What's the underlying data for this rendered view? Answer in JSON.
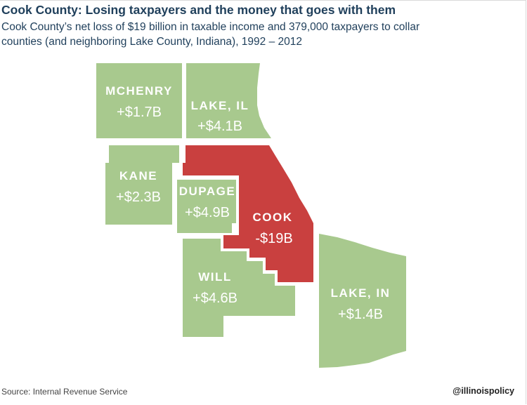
{
  "title": "Cook County: Losing taxpayers and the money that goes with them",
  "subtitle": "Cook County’s net loss of $19 billion in taxable income and 379,000 taxpayers to collar counties (and neighboring Lake County, Indiana), 1992 – 2012",
  "colors": {
    "gain": "#a8c98e",
    "loss": "#c9403f",
    "text": "#1f3f5b"
  },
  "counties": {
    "mchenry": {
      "name": "MCHENRY",
      "value": "+$1.7B"
    },
    "lake_il": {
      "name": "LAKE, IL",
      "value": "+$4.1B"
    },
    "kane": {
      "name": "KANE",
      "value": "+$2.3B"
    },
    "dupage": {
      "name": "DUPAGE",
      "value": "+$4.9B"
    },
    "cook": {
      "name": "COOK",
      "value": "-$19B"
    },
    "will": {
      "name": "WILL",
      "value": "+$4.6B"
    },
    "lake_in": {
      "name": "LAKE, IN",
      "value": "+$1.4B"
    }
  },
  "footer": {
    "source": "Source: Internal Revenue Service",
    "handle": "@illinoispolicy"
  }
}
